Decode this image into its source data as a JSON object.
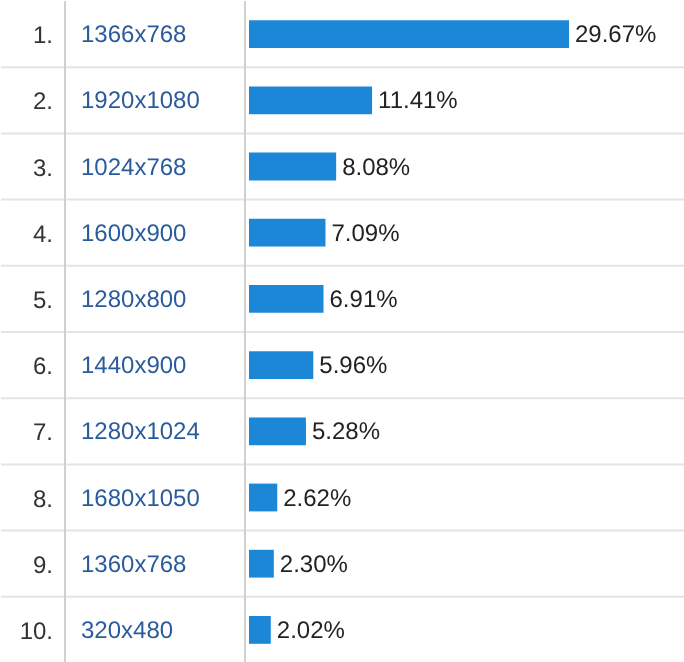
{
  "chart_data": {
    "type": "bar",
    "orientation": "horizontal",
    "categories": [
      "1366x768",
      "1920x1080",
      "1024x768",
      "1600x900",
      "1280x800",
      "1440x900",
      "1280x1024",
      "1680x1050",
      "1360x768",
      "320x480"
    ],
    "values": [
      29.67,
      11.41,
      8.08,
      7.09,
      6.91,
      5.96,
      5.28,
      2.62,
      2.3,
      2.02
    ],
    "value_labels": [
      "29.67%",
      "11.41%",
      "8.08%",
      "7.09%",
      "6.91%",
      "5.96%",
      "5.28%",
      "2.62%",
      "2.30%",
      "2.02%"
    ],
    "annotations": [
      "1.",
      "2.",
      "3.",
      "4.",
      "5.",
      "6.",
      "7.",
      "8.",
      "9.",
      "10."
    ],
    "color": "#1d87d7",
    "grid": "y"
  }
}
